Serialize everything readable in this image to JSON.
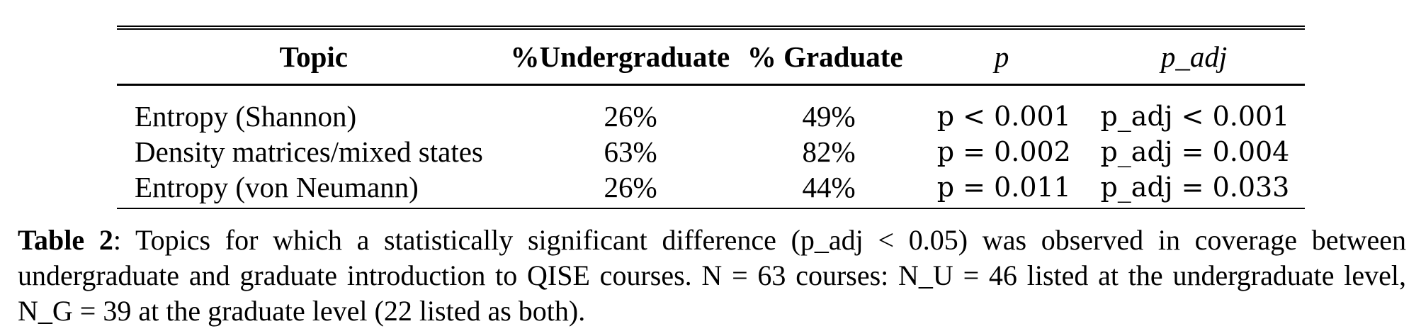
{
  "table": {
    "headers": [
      "Topic",
      "%Undergraduate",
      "% Graduate",
      "p",
      "p_adj"
    ],
    "rows": [
      {
        "topic": "Entropy (Shannon)",
        "undergrad": "26%",
        "graduate": "49%",
        "p": "p < 0.001",
        "p_adj": "p_adj < 0.001"
      },
      {
        "topic": "Density matrices/mixed states",
        "undergrad": "63%",
        "graduate": "82%",
        "p": "p = 0.002",
        "p_adj": "p_adj = 0.004"
      },
      {
        "topic": "Entropy (von Neumann)",
        "undergrad": "26%",
        "graduate": "44%",
        "p": "p = 0.011",
        "p_adj": "p_adj = 0.033"
      }
    ]
  },
  "caption": {
    "label": "Table 2",
    "text": ": Topics for which a statistically significant difference (p_adj < 0.05) was observed in coverage between undergraduate and graduate introduction to QISE courses. N = 63 courses: N_U = 46 listed at the undergraduate level, N_G = 39 at the graduate level (22 listed as both)."
  }
}
